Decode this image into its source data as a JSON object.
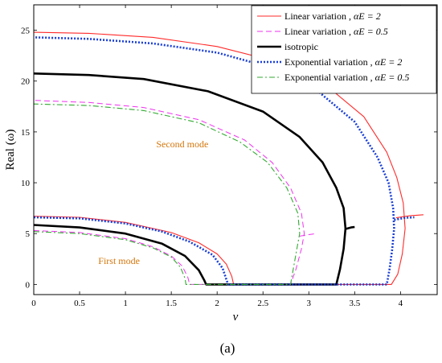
{
  "chart_data": {
    "type": "line",
    "caption": "(a)",
    "xlabel": "v",
    "ylabel": "Real (ω)",
    "xlim": [
      0,
      4.4
    ],
    "ylim": [
      -1,
      27.5
    ],
    "xticks": [
      0,
      0.5,
      1,
      1.5,
      2,
      2.5,
      3,
      3.5,
      4
    ],
    "xtick_labels": [
      "0",
      "0.5",
      "1",
      "1.5",
      "2",
      "2.5",
      "3",
      "3.5",
      "4"
    ],
    "yticks": [
      0,
      5,
      10,
      15,
      20,
      25
    ],
    "ytick_labels": [
      "0",
      "5",
      "10",
      "15",
      "20",
      "25"
    ],
    "grid": false,
    "legend_position": "top-right",
    "annotations": [
      {
        "text": "Second mode",
        "x": 1.62,
        "y": 13.5,
        "color": "#d4760a"
      },
      {
        "text": "First mode",
        "x": 0.93,
        "y": 2.0,
        "color": "#d4760a"
      }
    ],
    "series": [
      {
        "legend_text": "Linear variation , ",
        "legend_math": "αE = 2",
        "color": "#ff2a2a",
        "dash": "",
        "width": 1.1,
        "segments": [
          [
            [
              0,
              6.7
            ],
            [
              0.5,
              6.6
            ],
            [
              1.0,
              6.1
            ],
            [
              1.5,
              5.1
            ],
            [
              1.8,
              4.1
            ],
            [
              2.0,
              3.0
            ],
            [
              2.1,
              2.0
            ],
            [
              2.16,
              0.8
            ],
            [
              2.18,
              0
            ],
            [
              3.9,
              0
            ],
            [
              3.97,
              1.0
            ],
            [
              4.02,
              3.0
            ],
            [
              4.05,
              5.5
            ],
            [
              4.03,
              8.0
            ],
            [
              3.96,
              10.5
            ],
            [
              3.85,
              13.0
            ],
            [
              3.6,
              16.5
            ],
            [
              3.2,
              19.5
            ],
            [
              2.7,
              21.8
            ],
            [
              2.0,
              23.4
            ],
            [
              1.3,
              24.3
            ],
            [
              0.6,
              24.7
            ],
            [
              0,
              24.8
            ]
          ],
          [
            [
              3.95,
              6.55
            ],
            [
              4.1,
              6.75
            ],
            [
              4.25,
              6.85
            ]
          ]
        ]
      },
      {
        "legend_text": "Linear variation , ",
        "legend_math": "αE = 0.5",
        "color": "#ee33ee",
        "dash": "7 4",
        "width": 1.0,
        "segments": [
          [
            [
              0,
              5.3
            ],
            [
              0.5,
              5.1
            ],
            [
              1.0,
              4.5
            ],
            [
              1.3,
              3.7
            ],
            [
              1.5,
              2.8
            ],
            [
              1.62,
              1.8
            ],
            [
              1.68,
              0.7
            ],
            [
              1.7,
              0
            ],
            [
              2.8,
              0
            ],
            [
              2.86,
              1.5
            ],
            [
              2.92,
              3.5
            ],
            [
              2.95,
              5.0
            ],
            [
              2.92,
              7.0
            ],
            [
              2.8,
              9.5
            ],
            [
              2.6,
              12.0
            ],
            [
              2.3,
              14.2
            ],
            [
              1.8,
              16.2
            ],
            [
              1.2,
              17.4
            ],
            [
              0.6,
              17.9
            ],
            [
              0,
              18.1
            ]
          ],
          [
            [
              2.9,
              4.75
            ],
            [
              3.0,
              4.9
            ],
            [
              3.08,
              5.0
            ]
          ]
        ]
      },
      {
        "legend_text": "isotropic",
        "legend_math": "",
        "color": "#000000",
        "dash": "",
        "width": 2.6,
        "segments": [
          [
            [
              0,
              5.85
            ],
            [
              0.5,
              5.6
            ],
            [
              1.0,
              5.0
            ],
            [
              1.4,
              4.0
            ],
            [
              1.65,
              2.8
            ],
            [
              1.8,
              1.4
            ],
            [
              1.86,
              0.4
            ],
            [
              1.88,
              0
            ],
            [
              3.3,
              0
            ],
            [
              3.34,
              1.5
            ],
            [
              3.38,
              3.5
            ],
            [
              3.4,
              5.5
            ],
            [
              3.38,
              7.5
            ],
            [
              3.3,
              9.5
            ],
            [
              3.15,
              12.0
            ],
            [
              2.9,
              14.5
            ],
            [
              2.5,
              17.0
            ],
            [
              1.9,
              19.0
            ],
            [
              1.2,
              20.2
            ],
            [
              0.6,
              20.6
            ],
            [
              0,
              20.75
            ]
          ],
          [
            [
              3.4,
              5.45
            ],
            [
              3.46,
              5.6
            ],
            [
              3.5,
              5.65
            ]
          ]
        ]
      },
      {
        "legend_text": "Exponential variation , ",
        "legend_math": "αE = 2",
        "color": "#1a3fd6",
        "dash": "2 2",
        "width": 2.6,
        "segments": [
          [
            [
              0,
              6.6
            ],
            [
              0.5,
              6.5
            ],
            [
              1.0,
              6.0
            ],
            [
              1.4,
              5.2
            ],
            [
              1.7,
              4.2
            ],
            [
              1.95,
              2.9
            ],
            [
              2.06,
              1.6
            ],
            [
              2.1,
              0.5
            ],
            [
              2.12,
              0
            ],
            [
              3.85,
              0
            ],
            [
              3.88,
              1.5
            ],
            [
              3.91,
              3.5
            ],
            [
              3.93,
              5.5
            ],
            [
              3.92,
              7.5
            ],
            [
              3.87,
              10.0
            ],
            [
              3.75,
              12.5
            ],
            [
              3.5,
              16.0
            ],
            [
              3.1,
              19.0
            ],
            [
              2.6,
              21.3
            ],
            [
              2.0,
              22.8
            ],
            [
              1.3,
              23.7
            ],
            [
              0.6,
              24.15
            ],
            [
              0,
              24.3
            ]
          ],
          [
            [
              3.93,
              6.35
            ],
            [
              4.05,
              6.55
            ],
            [
              4.15,
              6.6
            ]
          ]
        ]
      },
      {
        "legend_text": "Exponential variation , ",
        "legend_math": "αE = 0.5",
        "color": "#33aa33",
        "dash": "7 3 2 3",
        "width": 1.1,
        "segments": [
          [
            [
              0,
              5.2
            ],
            [
              0.5,
              5.0
            ],
            [
              1.0,
              4.4
            ],
            [
              1.3,
              3.6
            ],
            [
              1.5,
              2.7
            ],
            [
              1.6,
              1.7
            ],
            [
              1.65,
              0.6
            ],
            [
              1.66,
              0
            ],
            [
              2.8,
              0
            ],
            [
              2.83,
              1.5
            ],
            [
              2.87,
              3.5
            ],
            [
              2.9,
              5.0
            ],
            [
              2.88,
              7.0
            ],
            [
              2.76,
              9.5
            ],
            [
              2.55,
              12.0
            ],
            [
              2.25,
              14.0
            ],
            [
              1.8,
              15.9
            ],
            [
              1.2,
              17.1
            ],
            [
              0.6,
              17.6
            ],
            [
              0,
              17.75
            ]
          ]
        ]
      }
    ]
  }
}
